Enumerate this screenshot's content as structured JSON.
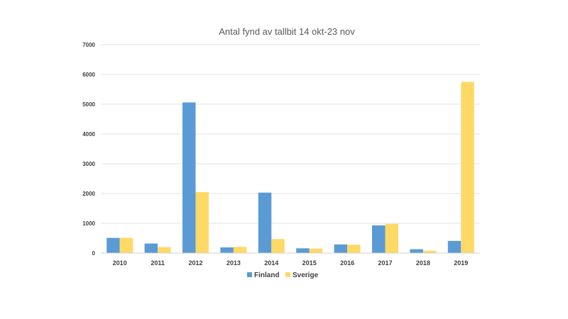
{
  "chart_data": {
    "type": "bar",
    "title": "Antal fynd av tallbit 14 okt-23 nov",
    "xlabel": "",
    "ylabel": "",
    "categories": [
      "2010",
      "2011",
      "2012",
      "2013",
      "2014",
      "2015",
      "2016",
      "2017",
      "2018",
      "2019"
    ],
    "series": [
      {
        "name": "Finland",
        "color": "#5B9BD5",
        "values": [
          510,
          320,
          5060,
          190,
          2030,
          160,
          290,
          930,
          130,
          410
        ]
      },
      {
        "name": "Sverige",
        "color": "#FFD966",
        "values": [
          510,
          200,
          2050,
          210,
          470,
          150,
          280,
          980,
          80,
          5750
        ]
      }
    ],
    "ylim": [
      0,
      7000
    ],
    "yticks": [
      "0",
      "1000",
      "2000",
      "3000",
      "4000",
      "5000",
      "6000",
      "7000"
    ],
    "grid": true,
    "legend_position": "bottom"
  }
}
